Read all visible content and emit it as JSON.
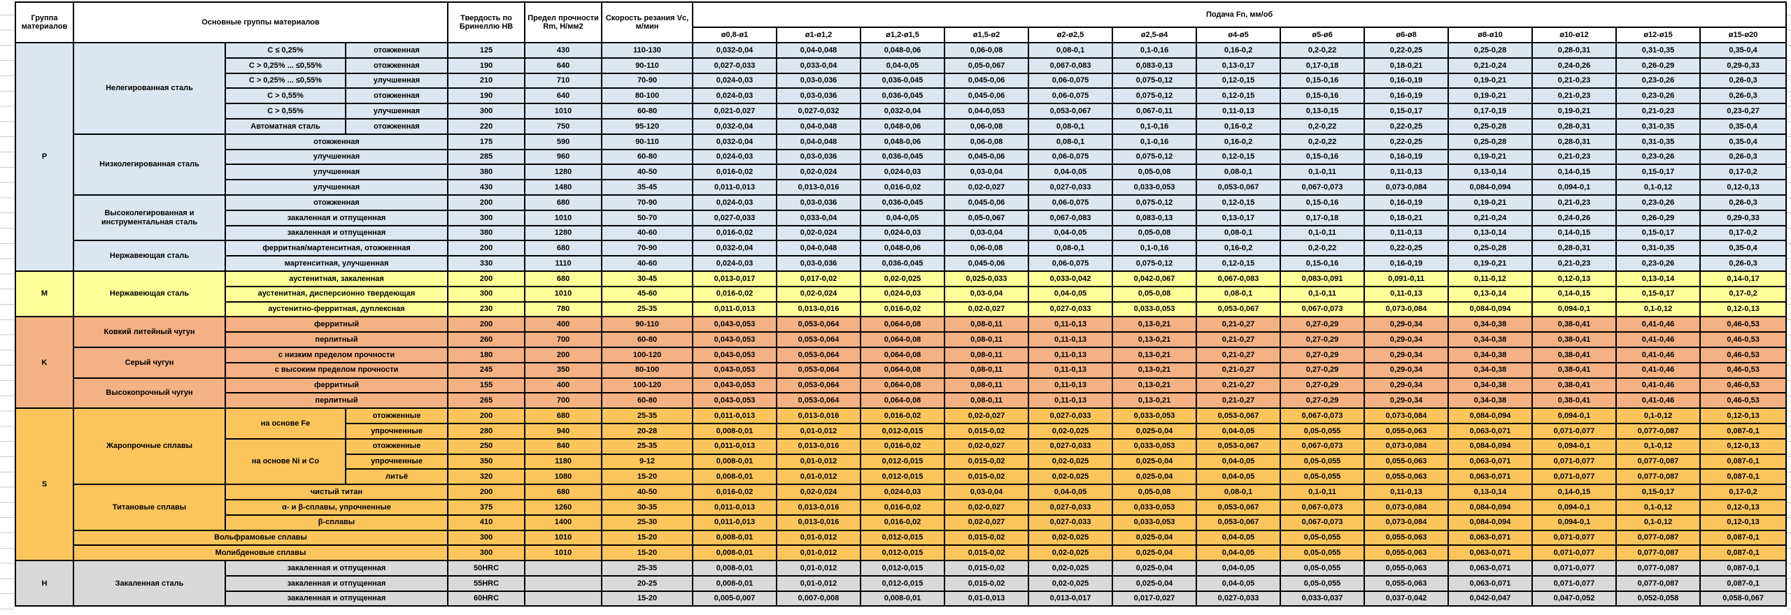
{
  "header": {
    "group": "Группа материалов",
    "main_groups": "Основные группы материалов",
    "hardness": "Твердость по Бринеллю HB",
    "strength": "Предел прочности Rm, Н/мм2",
    "speed": "Скорость резания Vc, м/мин",
    "feed": "Подача Fn, мм/об",
    "diameters": [
      "ø0,8-ø1",
      "ø1-ø1,2",
      "ø1,2-ø1,5",
      "ø1,5-ø2",
      "ø2-ø2,5",
      "ø2,5-ø4",
      "ø4-ø5",
      "ø5-ø6",
      "ø6-ø8",
      "ø8-ø10",
      "ø10-ø12",
      "ø12-ø15",
      "ø15-ø20"
    ]
  },
  "feed_values": {
    "A": [
      "0,032-0,04",
      "0,04-0,048",
      "0,048-0,06",
      "0,06-0,08",
      "0,08-0,1",
      "0,1-0,16",
      "0,16-0,2",
      "0,2-0,22",
      "0,22-0,25",
      "0,25-0,28",
      "0,28-0,31",
      "0,31-0,35",
      "0,35-0,4"
    ],
    "B": [
      "0,027-0,033",
      "0,033-0,04",
      "0,04-0,05",
      "0,05-0,067",
      "0,067-0,083",
      "0,083-0,13",
      "0,13-0,17",
      "0,17-0,18",
      "0,18-0,21",
      "0,21-0,24",
      "0,24-0,26",
      "0,26-0,29",
      "0,29-0,33"
    ],
    "C": [
      "0,024-0,03",
      "0,03-0,036",
      "0,036-0,045",
      "0,045-0,06",
      "0,06-0,075",
      "0,075-0,12",
      "0,12-0,15",
      "0,15-0,16",
      "0,16-0,19",
      "0,19-0,21",
      "0,21-0,23",
      "0,23-0,26",
      "0,26-0,3"
    ],
    "D": [
      "0,021-0,027",
      "0,027-0,032",
      "0,032-0,04",
      "0,04-0,053",
      "0,053-0,067",
      "0,067-0,11",
      "0,11-0,13",
      "0,13-0,15",
      "0,15-0,17",
      "0,17-0,19",
      "0,19-0,21",
      "0,21-0,23",
      "0,23-0,27"
    ],
    "E": [
      "0,016-0,02",
      "0,02-0,024",
      "0,024-0,03",
      "0,03-0,04",
      "0,04-0,05",
      "0,05-0,08",
      "0,08-0,1",
      "0,1-0,11",
      "0,11-0,13",
      "0,13-0,14",
      "0,14-0,15",
      "0,15-0,17",
      "0,17-0,2"
    ],
    "F": [
      "0,011-0,013",
      "0,013-0,016",
      "0,016-0,02",
      "0,02-0,027",
      "0,027-0,033",
      "0,033-0,053",
      "0,053-0,067",
      "0,067-0,073",
      "0,073-0,084",
      "0,084-0,094",
      "0,094-0,1",
      "0,1-0,12",
      "0,12-0,13"
    ],
    "G": [
      "0,013-0,017",
      "0,017-0,02",
      "0,02-0,025",
      "0,025-0,033",
      "0,033-0,042",
      "0,042-0,067",
      "0,067-0,083",
      "0,083-0,091",
      "0,091-0,11",
      "0,11-0,12",
      "0,12-0,13",
      "0,13-0,14",
      "0,14-0,17"
    ],
    "H": [
      "0,043-0,053",
      "0,053-0,064",
      "0,064-0,08",
      "0,08-0,11",
      "0,11-0,13",
      "0,13-0,21",
      "0,21-0,27",
      "0,27-0,29",
      "0,29-0,34",
      "0,34-0,38",
      "0,38-0,41",
      "0,41-0,46",
      "0,46-0,53"
    ],
    "I": [
      "0,008-0,01",
      "0,01-0,012",
      "0,012-0,015",
      "0,015-0,02",
      "0,02-0,025",
      "0,025-0,04",
      "0,04-0,05",
      "0,05-0,055",
      "0,055-0,063",
      "0,063-0,071",
      "0,071-0,077",
      "0,077-0,087",
      "0,087-0,1"
    ],
    "J": [
      "0,005-0,007",
      "0,007-0,008",
      "0,008-0,01",
      "0,01-0,013",
      "0,013-0,017",
      "0,017-0,027",
      "0,027-0,033",
      "0,033-0,037",
      "0,037-0,042",
      "0,042-0,047",
      "0,047-0,052",
      "0,052-0,058",
      "0,058-0,067"
    ]
  },
  "bands": [
    {
      "letter": "P",
      "color": "#DCE6F1",
      "materials": [
        {
          "name": "Нелегированная сталь",
          "rows": [
            {
              "cond": [
                "C ≤ 0,25%",
                "отожженная"
              ],
              "hb": "125",
              "rm": "430",
              "vc": "110-130",
              "feeds": "A"
            },
            {
              "cond": [
                "C > 0,25% ... ≤0,55%",
                "отожженная"
              ],
              "hb": "190",
              "rm": "640",
              "vc": "90-110",
              "feeds": "B"
            },
            {
              "cond": [
                "C > 0,25% ... ≤0,55%",
                "улучшенная"
              ],
              "hb": "210",
              "rm": "710",
              "vc": "70-90",
              "feeds": "C"
            },
            {
              "cond": [
                "C > 0,55%",
                "отожженная"
              ],
              "hb": "190",
              "rm": "640",
              "vc": "80-100",
              "feeds": "C"
            },
            {
              "cond": [
                "C > 0,55%",
                "улучшенная"
              ],
              "hb": "300",
              "rm": "1010",
              "vc": "60-80",
              "feeds": "D"
            },
            {
              "cond": [
                "Автоматная сталь",
                "отожженная"
              ],
              "hb": "220",
              "rm": "750",
              "vc": "95-120",
              "feeds": "A"
            }
          ]
        },
        {
          "name": "Низколегированная сталь",
          "rows": [
            {
              "cond_merged": "отожженная",
              "hb": "175",
              "rm": "590",
              "vc": "90-110",
              "feeds": "A"
            },
            {
              "cond_merged": "улучшенная",
              "hb": "285",
              "rm": "960",
              "vc": "60-80",
              "feeds": "C"
            },
            {
              "cond_merged": "улучшенная",
              "hb": "380",
              "rm": "1280",
              "vc": "40-50",
              "feeds": "E"
            },
            {
              "cond_merged": "улучшенная",
              "hb": "430",
              "rm": "1480",
              "vc": "35-45",
              "feeds": "F"
            }
          ]
        },
        {
          "name": "Высоколегированная и инструментальная сталь",
          "rows": [
            {
              "cond_merged": "отожженная",
              "hb": "200",
              "rm": "680",
              "vc": "70-90",
              "feeds": "C"
            },
            {
              "cond_merged": "закаленная и отпущенная",
              "hb": "300",
              "rm": "1010",
              "vc": "50-70",
              "feeds": "B"
            },
            {
              "cond_merged": "закаленная и отпущенная",
              "hb": "380",
              "rm": "1280",
              "vc": "40-60",
              "feeds": "E"
            }
          ]
        },
        {
          "name": "Нержавеющая сталь",
          "rows": [
            {
              "cond_merged": "ферритная/мартенситная, отожженная",
              "hb": "200",
              "rm": "680",
              "vc": "70-90",
              "feeds": "A"
            },
            {
              "cond_merged": "мартенситная, улучшенная",
              "hb": "330",
              "rm": "1110",
              "vc": "40-60",
              "feeds": "C"
            }
          ]
        }
      ]
    },
    {
      "letter": "M",
      "color": "#FFFF99",
      "materials": [
        {
          "name": "Нержавеющая сталь",
          "rows": [
            {
              "cond_merged": "аустенитная, закаленная",
              "hb": "200",
              "rm": "680",
              "vc": "30-45",
              "feeds": "G"
            },
            {
              "cond_merged": "аустенитная, дисперсионно твердеющая",
              "hb": "300",
              "rm": "1010",
              "vc": "45-60",
              "feeds": "E"
            },
            {
              "cond_merged": "аустенитно-ферритная, дуплексная",
              "hb": "230",
              "rm": "780",
              "vc": "25-35",
              "feeds": "F"
            }
          ]
        }
      ]
    },
    {
      "letter": "K",
      "color": "#F4B183",
      "materials": [
        {
          "name": "Ковкий литейный чугун",
          "rows": [
            {
              "cond_merged": "ферритный",
              "hb": "200",
              "rm": "400",
              "vc": "90-110",
              "feeds": "H"
            },
            {
              "cond_merged": "перлитный",
              "hb": "260",
              "rm": "700",
              "vc": "60-80",
              "feeds": "H"
            }
          ]
        },
        {
          "name": "Серый чугун",
          "rows": [
            {
              "cond_merged": "с низким пределом прочности",
              "hb": "180",
              "rm": "200",
              "vc": "100-120",
              "feeds": "H"
            },
            {
              "cond_merged": "с высоким пределом прочности",
              "hb": "245",
              "rm": "350",
              "vc": "80-100",
              "feeds": "H"
            }
          ]
        },
        {
          "name": "Высокопрочный чугун",
          "rows": [
            {
              "cond_merged": "ферритный",
              "hb": "155",
              "rm": "400",
              "vc": "100-120",
              "feeds": "H"
            },
            {
              "cond_merged": "перлитный",
              "hb": "265",
              "rm": "700",
              "vc": "60-80",
              "feeds": "H"
            }
          ]
        }
      ]
    },
    {
      "letter": "S",
      "color": "#FCC55C",
      "materials": [
        {
          "name": "Жаропрочные сплавы",
          "rows": [
            {
              "cond": [
                "на основе Fe",
                "отожженные"
              ],
              "condA_span": 2,
              "hb": "200",
              "rm": "680",
              "vc": "25-35",
              "feeds": "F"
            },
            {
              "cond": [
                null,
                "упрочненные"
              ],
              "hb": "280",
              "rm": "940",
              "vc": "20-28",
              "feeds": "I"
            },
            {
              "cond": [
                "на основе Ni и Co",
                "отожженные"
              ],
              "condA_span": 3,
              "hb": "250",
              "rm": "840",
              "vc": "25-35",
              "feeds": "F"
            },
            {
              "cond": [
                null,
                "упрочненные"
              ],
              "hb": "350",
              "rm": "1180",
              "vc": "9-12",
              "feeds": "I"
            },
            {
              "cond": [
                null,
                "литьё"
              ],
              "hb": "320",
              "rm": "1080",
              "vc": "15-20",
              "feeds": "I"
            }
          ]
        },
        {
          "name": "Титановые сплавы",
          "rows": [
            {
              "cond_merged": "чистый титан",
              "hb": "200",
              "rm": "680",
              "vc": "40-50",
              "feeds": "E"
            },
            {
              "cond_merged": "α- и β-сплавы, упрочненные",
              "hb": "375",
              "rm": "1260",
              "vc": "30-35",
              "feeds": "F"
            },
            {
              "cond_merged": "β-сплавы",
              "hb": "410",
              "rm": "1400",
              "vc": "25-30",
              "feeds": "F"
            }
          ]
        },
        {
          "name": "Вольфрамовые сплавы",
          "full_row": true,
          "rows": [
            {
              "hb": "300",
              "rm": "1010",
              "vc": "15-20",
              "feeds": "I"
            }
          ]
        },
        {
          "name": "Молибденовые сплавы",
          "full_row": true,
          "rows": [
            {
              "hb": "300",
              "rm": "1010",
              "vc": "15-20",
              "feeds": "I"
            }
          ]
        }
      ]
    },
    {
      "letter": "H",
      "color": "#D9D9D9",
      "materials": [
        {
          "name": "Закаленная сталь",
          "rows": [
            {
              "cond_merged": "закаленная и отпущенная",
              "hb": "50HRC",
              "rm": "",
              "vc": "25-35",
              "feeds": "I"
            },
            {
              "cond_merged": "закаленная и отпущенная",
              "hb": "55HRC",
              "rm": "",
              "vc": "20-25",
              "feeds": "I"
            },
            {
              "cond_merged": "закаленная и отпущенная",
              "hb": "60HRC",
              "rm": "",
              "vc": "15-20",
              "feeds": "J"
            }
          ]
        }
      ]
    }
  ]
}
